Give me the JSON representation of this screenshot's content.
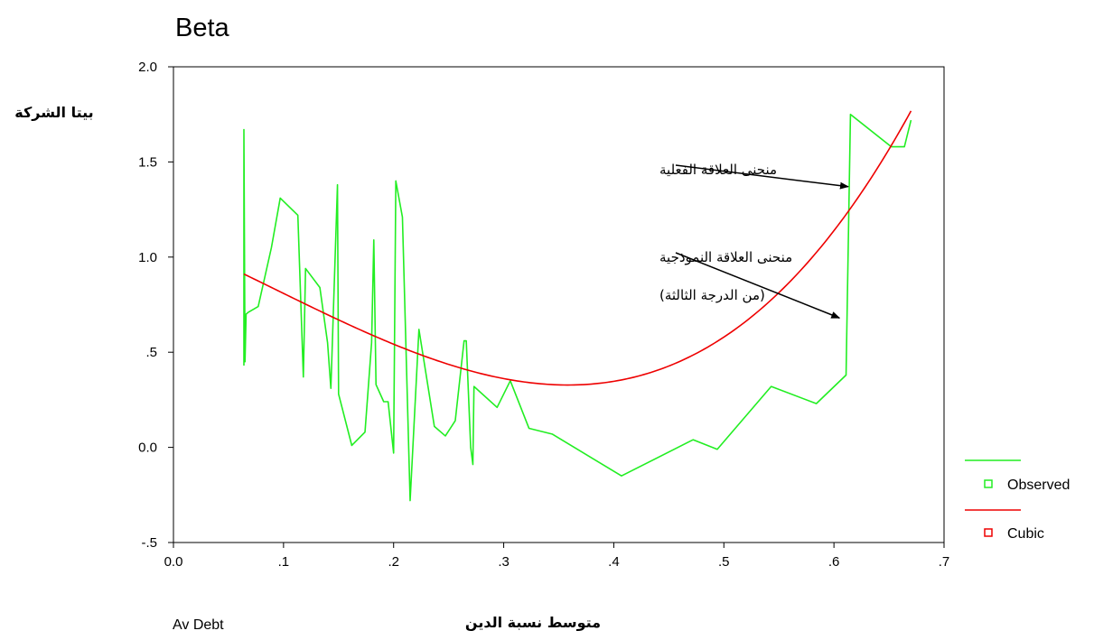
{
  "chart_data": {
    "type": "line",
    "title": "Beta",
    "ylabel": "بيتا الشركة",
    "xlabel": "متوسط نسبة الدين",
    "xvar_label": "Av Debt",
    "xlim": [
      0.0,
      0.7
    ],
    "ylim": [
      -0.5,
      2.0
    ],
    "x_ticks": [
      0.0,
      0.1,
      0.2,
      0.3,
      0.4,
      0.5,
      0.6,
      0.7
    ],
    "x_tick_labels": [
      "0.0",
      ".1",
      ".2",
      ".3",
      ".4",
      ".5",
      ".6",
      ".7"
    ],
    "y_ticks": [
      -0.5,
      0.0,
      0.5,
      1.0,
      1.5,
      2.0
    ],
    "y_tick_labels": [
      "-.5",
      "0.0",
      ".5",
      "1.0",
      "1.5",
      "2.0"
    ],
    "grid": false,
    "legend_position": "right",
    "series": [
      {
        "name": "Observed",
        "color": "#22ee22",
        "points": [
          [
            0.064,
            0.43
          ],
          [
            0.064,
            1.67
          ],
          [
            0.065,
            0.45
          ],
          [
            0.066,
            0.7
          ],
          [
            0.068,
            0.71
          ],
          [
            0.077,
            0.74
          ],
          [
            0.089,
            1.05
          ],
          [
            0.097,
            1.31
          ],
          [
            0.113,
            1.22
          ],
          [
            0.118,
            0.37
          ],
          [
            0.12,
            0.94
          ],
          [
            0.133,
            0.84
          ],
          [
            0.14,
            0.55
          ],
          [
            0.143,
            0.31
          ],
          [
            0.149,
            1.38
          ],
          [
            0.15,
            0.28
          ],
          [
            0.162,
            0.01
          ],
          [
            0.174,
            0.08
          ],
          [
            0.18,
            0.55
          ],
          [
            0.182,
            1.09
          ],
          [
            0.184,
            0.33
          ],
          [
            0.191,
            0.24
          ],
          [
            0.195,
            0.24
          ],
          [
            0.2,
            -0.03
          ],
          [
            0.202,
            1.4
          ],
          [
            0.208,
            1.21
          ],
          [
            0.215,
            -0.28
          ],
          [
            0.223,
            0.62
          ],
          [
            0.237,
            0.11
          ],
          [
            0.247,
            0.06
          ],
          [
            0.256,
            0.14
          ],
          [
            0.264,
            0.56
          ],
          [
            0.266,
            0.56
          ],
          [
            0.27,
            0.0
          ],
          [
            0.272,
            -0.09
          ],
          [
            0.273,
            0.32
          ],
          [
            0.294,
            0.21
          ],
          [
            0.306,
            0.35
          ],
          [
            0.323,
            0.1
          ],
          [
            0.344,
            0.07
          ],
          [
            0.407,
            -0.15
          ],
          [
            0.472,
            0.04
          ],
          [
            0.494,
            -0.01
          ],
          [
            0.543,
            0.32
          ],
          [
            0.584,
            0.23
          ],
          [
            0.611,
            0.38
          ],
          [
            0.615,
            1.75
          ],
          [
            0.652,
            1.58
          ],
          [
            0.664,
            1.58
          ],
          [
            0.67,
            1.72
          ]
        ]
      },
      {
        "name": "Cubic",
        "color": "#ee0000",
        "model": "cubic",
        "coefficients": {
          "b0": 1.082,
          "b1": -2.49,
          "b2": -3.72,
          "b3": 13.38
        },
        "x_range": [
          0.064,
          0.67
        ]
      }
    ],
    "annotations": [
      {
        "lines": [
          "منحنى العلاقة الفعلية"
        ],
        "target": [
          0.613,
          1.37
        ]
      },
      {
        "lines": [
          "منحنى العلاقة النموذجية",
          "(من الدرجة الثالثة)"
        ],
        "target": [
          0.605,
          0.68
        ]
      }
    ]
  }
}
